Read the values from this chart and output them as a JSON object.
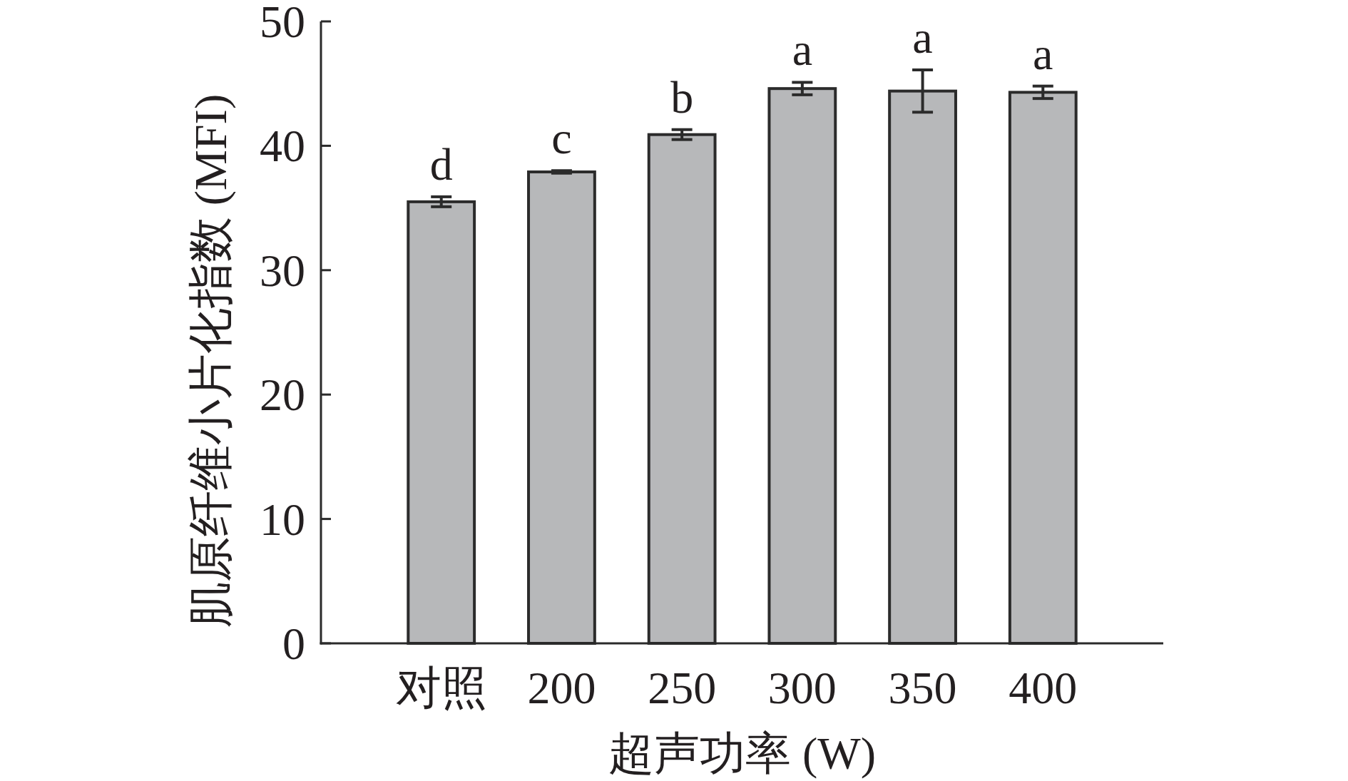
{
  "chart_data": {
    "type": "bar",
    "categories": [
      "对照",
      "200",
      "250",
      "300",
      "350",
      "400"
    ],
    "values": [
      35.5,
      37.9,
      40.9,
      44.6,
      44.4,
      44.3
    ],
    "errors": [
      0.4,
      0.1,
      0.4,
      0.5,
      1.7,
      0.5
    ],
    "color": "#b7b8ba",
    "xlabel": "超声功率 (W)",
    "ylabel": "肌原纤维小片化指数 (MFI)",
    "ylim": [
      0,
      50
    ],
    "yticks": [
      0,
      10,
      20,
      30,
      40,
      50
    ],
    "annotations": [
      "d",
      "c",
      "b",
      "a",
      "a",
      "a"
    ]
  }
}
